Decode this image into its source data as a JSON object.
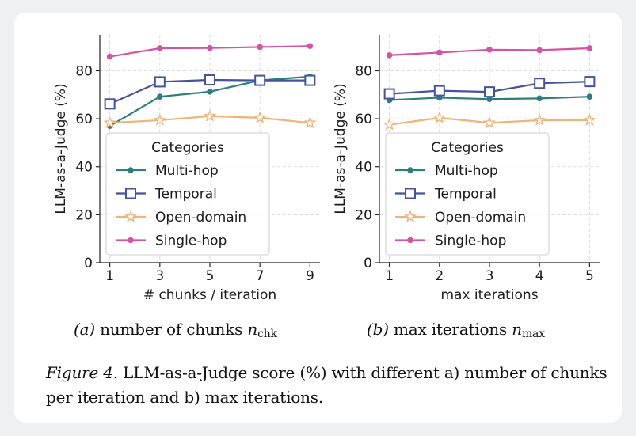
{
  "chart_data": [
    {
      "type": "line",
      "panel_label": "(a)",
      "subcaption_text": "number of chunks",
      "subcaption_symbol": "n",
      "subcaption_subscript": "chk",
      "xlabel": "# chunks / iteration",
      "ylabel": "LLM-as-a-Judge (%)",
      "x": [
        1,
        3,
        5,
        7,
        9
      ],
      "xlim": [
        0.6,
        9.4
      ],
      "ylim": [
        0,
        95
      ],
      "yticks": [
        0,
        20,
        40,
        60,
        80
      ],
      "grid": true,
      "legend_title": "Categories",
      "legend_position": "lower-left",
      "series": [
        {
          "name": "Multi-hop",
          "color": "#2d7f7b",
          "marker": "circle",
          "values": [
            57,
            69.2,
            71.3,
            76,
            77.6
          ]
        },
        {
          "name": "Temporal",
          "color": "#4552a0",
          "marker": "square",
          "values": [
            66.2,
            75.4,
            76.2,
            76,
            76
          ]
        },
        {
          "name": "Open-domain",
          "color": "#f2b37a",
          "marker": "star",
          "values": [
            58.3,
            59.4,
            61.1,
            60.4,
            58.3
          ]
        },
        {
          "name": "Single-hop",
          "color": "#d553a4",
          "marker": "circle",
          "values": [
            85.9,
            89.4,
            89.5,
            89.9,
            90.3
          ]
        }
      ]
    },
    {
      "type": "line",
      "panel_label": "(b)",
      "subcaption_text": "max iterations",
      "subcaption_symbol": "n",
      "subcaption_subscript": "max",
      "xlabel": "max iterations",
      "ylabel": "LLM-as-a-Judge (%)",
      "x": [
        1,
        2,
        3,
        4,
        5
      ],
      "xlim": [
        0.8,
        5.2
      ],
      "ylim": [
        0,
        95
      ],
      "yticks": [
        0,
        20,
        40,
        60,
        80
      ],
      "grid": true,
      "legend_title": "Categories",
      "legend_position": "lower-left",
      "series": [
        {
          "name": "Multi-hop",
          "color": "#2d7f7b",
          "marker": "circle",
          "values": [
            67.8,
            68.8,
            68.2,
            68.5,
            69.2
          ]
        },
        {
          "name": "Temporal",
          "color": "#4552a0",
          "marker": "square",
          "values": [
            70.4,
            71.7,
            71.2,
            74.8,
            75.5
          ]
        },
        {
          "name": "Open-domain",
          "color": "#f2b37a",
          "marker": "star",
          "values": [
            57.5,
            60.4,
            58.3,
            59.4,
            59.4
          ]
        },
        {
          "name": "Single-hop",
          "color": "#d553a4",
          "marker": "circle",
          "values": [
            86.5,
            87.6,
            88.8,
            88.6,
            89.4
          ]
        }
      ]
    }
  ],
  "caption": {
    "label": "Figure 4.",
    "text": "LLM-as-a-Judge score (%) with different a) number of chunks per iteration and b) max iterations."
  }
}
